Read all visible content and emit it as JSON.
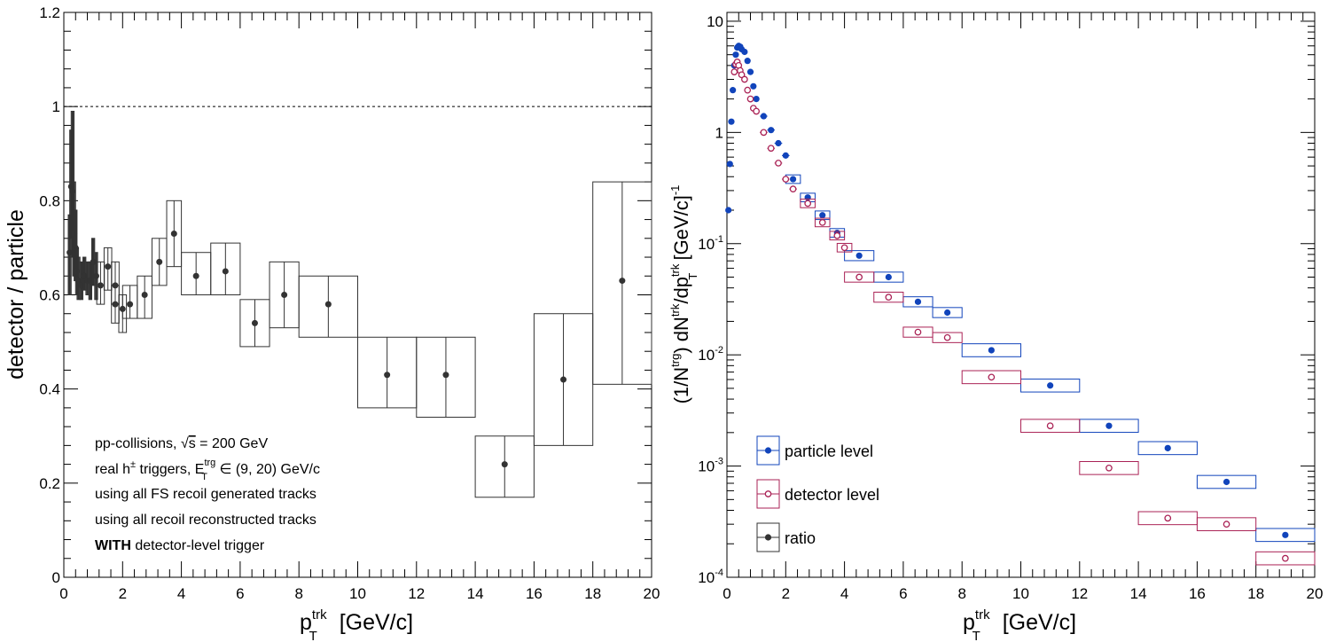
{
  "chart_data": [
    {
      "type": "scatter",
      "title": "",
      "xlabel": {
        "base": "p",
        "sup": "trk",
        "sub": "T",
        "rest": " [GeV/c]"
      },
      "ylabel": "detector / particle",
      "xlim": [
        0,
        20
      ],
      "ylim": [
        0,
        1.2
      ],
      "x_ticks": [
        "0",
        "2",
        "4",
        "6",
        "8",
        "10",
        "12",
        "14",
        "16",
        "18",
        "20"
      ],
      "y_ticks": [
        "0",
        "0.2",
        "0.4",
        "0.6",
        "0.8",
        "1",
        "1.2"
      ],
      "reference_line": 1,
      "annotations": {
        "line1_pre": "pp-collisions, ",
        "line1_sqrt": "s",
        "line1_post": " = 200 GeV",
        "line2_pre": "real h",
        "line2_pm": "±",
        "line2_mid": " triggers, E",
        "line2_sup": "trg",
        "line2_sub": "T",
        "line2_post": " ∈ (9, 20) GeV/c",
        "line3": "using all FS recoil generated tracks",
        "line4": "using all recoil reconstructed tracks",
        "line5_bold": "WITH",
        "line5_rest": " detector-level trigger"
      },
      "series": [
        {
          "name": "ratio",
          "color": "#333333",
          "points": [
            {
              "x": 0.2,
              "y": 0.69,
              "xerr": 0.05,
              "ylo": 0.6,
              "yhi": 0.77
            },
            {
              "x": 0.25,
              "y": 0.83,
              "xerr": 0.05,
              "ylo": 0.72,
              "yhi": 0.95
            },
            {
              "x": 0.3,
              "y": 0.82,
              "xerr": 0.05,
              "ylo": 0.68,
              "yhi": 0.99
            },
            {
              "x": 0.35,
              "y": 0.73,
              "xerr": 0.05,
              "ylo": 0.64,
              "yhi": 0.84
            },
            {
              "x": 0.4,
              "y": 0.7,
              "xerr": 0.05,
              "ylo": 0.63,
              "yhi": 0.78
            },
            {
              "x": 0.45,
              "y": 0.65,
              "xerr": 0.05,
              "ylo": 0.6,
              "yhi": 0.7
            },
            {
              "x": 0.5,
              "y": 0.63,
              "xerr": 0.05,
              "ylo": 0.59,
              "yhi": 0.68
            },
            {
              "x": 0.6,
              "y": 0.62,
              "xerr": 0.05,
              "ylo": 0.59,
              "yhi": 0.67
            },
            {
              "x": 0.7,
              "y": 0.64,
              "xerr": 0.05,
              "ylo": 0.61,
              "yhi": 0.68
            },
            {
              "x": 0.8,
              "y": 0.63,
              "xerr": 0.05,
              "ylo": 0.6,
              "yhi": 0.67
            },
            {
              "x": 0.9,
              "y": 0.63,
              "xerr": 0.05,
              "ylo": 0.59,
              "yhi": 0.67
            },
            {
              "x": 1.0,
              "y": 0.67,
              "xerr": 0.05,
              "ylo": 0.62,
              "yhi": 0.72
            },
            {
              "x": 1.1,
              "y": 0.64,
              "xerr": 0.05,
              "ylo": 0.59,
              "yhi": 0.69
            },
            {
              "x": 1.25,
              "y": 0.62,
              "xerr": 0.13,
              "ylo": 0.58,
              "yhi": 0.67
            },
            {
              "x": 1.5,
              "y": 0.66,
              "xerr": 0.13,
              "ylo": 0.61,
              "yhi": 0.7
            },
            {
              "x": 1.75,
              "y": 0.62,
              "xerr": 0.13,
              "ylo": 0.58,
              "yhi": 0.67
            },
            {
              "x": 1.75,
              "y": 0.58,
              "xerr": 0.13,
              "ylo": 0.54,
              "yhi": 0.62
            },
            {
              "x": 2.0,
              "y": 0.57,
              "xerr": 0.13,
              "ylo": 0.52,
              "yhi": 0.6
            },
            {
              "x": 2.25,
              "y": 0.58,
              "xerr": 0.25,
              "ylo": 0.55,
              "yhi": 0.62
            },
            {
              "x": 2.75,
              "y": 0.6,
              "xerr": 0.25,
              "ylo": 0.55,
              "yhi": 0.64
            },
            {
              "x": 3.25,
              "y": 0.67,
              "xerr": 0.25,
              "ylo": 0.62,
              "yhi": 0.72
            },
            {
              "x": 3.75,
              "y": 0.73,
              "xerr": 0.25,
              "ylo": 0.66,
              "yhi": 0.8
            },
            {
              "x": 4.5,
              "y": 0.64,
              "xerr": 0.5,
              "ylo": 0.6,
              "yhi": 0.69
            },
            {
              "x": 5.5,
              "y": 0.65,
              "xerr": 0.5,
              "ylo": 0.6,
              "yhi": 0.71
            },
            {
              "x": 6.5,
              "y": 0.54,
              "xerr": 0.5,
              "ylo": 0.49,
              "yhi": 0.59
            },
            {
              "x": 7.5,
              "y": 0.6,
              "xerr": 0.5,
              "ylo": 0.53,
              "yhi": 0.67
            },
            {
              "x": 9.0,
              "y": 0.58,
              "xerr": 1.0,
              "ylo": 0.51,
              "yhi": 0.64
            },
            {
              "x": 11.0,
              "y": 0.43,
              "xerr": 1.0,
              "ylo": 0.36,
              "yhi": 0.51
            },
            {
              "x": 13.0,
              "y": 0.43,
              "xerr": 1.0,
              "ylo": 0.34,
              "yhi": 0.51
            },
            {
              "x": 15.0,
              "y": 0.24,
              "xerr": 1.0,
              "ylo": 0.17,
              "yhi": 0.3
            },
            {
              "x": 17.0,
              "y": 0.42,
              "xerr": 1.0,
              "ylo": 0.28,
              "yhi": 0.56
            },
            {
              "x": 19.0,
              "y": 0.63,
              "xerr": 1.0,
              "ylo": 0.41,
              "yhi": 0.84
            }
          ]
        }
      ]
    },
    {
      "type": "scatter",
      "title": "",
      "xlabel": {
        "base": "p",
        "sup": "trk",
        "sub": "T",
        "rest": " [GeV/c]"
      },
      "ylabel": {
        "p1": "(1/N",
        "p1_sup": "trg",
        "p2": ") dN",
        "p2_sup": "trk",
        "p3": "/dp",
        "p3_sup": "trk",
        "p3_sub": "T",
        "p4": " [GeV/c]",
        "p4_sup": "-1"
      },
      "xlim": [
        0,
        20
      ],
      "ylim": [
        0.0001,
        12
      ],
      "log_y": true,
      "x_ticks": [
        "0",
        "2",
        "4",
        "6",
        "8",
        "10",
        "12",
        "14",
        "16",
        "18",
        "20"
      ],
      "y_ticks": [
        {
          "base": "10",
          "exp": "-4",
          "value": 0.0001
        },
        {
          "base": "10",
          "exp": "-3",
          "value": 0.001
        },
        {
          "base": "10",
          "exp": "-2",
          "value": 0.01
        },
        {
          "base": "10",
          "exp": "-1",
          "value": 0.1
        },
        {
          "base": "1",
          "exp": "",
          "value": 1
        },
        {
          "base": "10",
          "exp": "",
          "value": 10
        }
      ],
      "legend_position": "bottom-left",
      "legend": [
        {
          "label": "particle level",
          "color": "#1144bb",
          "marker": "filled-circle"
        },
        {
          "label": "detector level",
          "color": "#aa2255",
          "marker": "open-circle"
        },
        {
          "label": "ratio",
          "color": "#333333",
          "marker": "filled-circle"
        }
      ],
      "series": [
        {
          "name": "particle level",
          "color": "#1144bb",
          "marker": "filled",
          "points": [
            {
              "x": 0.05,
              "y": 0.2,
              "xerr": 0.05
            },
            {
              "x": 0.1,
              "y": 0.52,
              "xerr": 0.05
            },
            {
              "x": 0.15,
              "y": 1.25,
              "xerr": 0.05
            },
            {
              "x": 0.2,
              "y": 2.4,
              "xerr": 0.05
            },
            {
              "x": 0.25,
              "y": 4.0,
              "xerr": 0.05
            },
            {
              "x": 0.3,
              "y": 5.0,
              "xerr": 0.05
            },
            {
              "x": 0.35,
              "y": 5.8,
              "xerr": 0.05
            },
            {
              "x": 0.4,
              "y": 6.0,
              "xerr": 0.05
            },
            {
              "x": 0.45,
              "y": 5.9,
              "xerr": 0.05
            },
            {
              "x": 0.5,
              "y": 5.6,
              "xerr": 0.05
            },
            {
              "x": 0.6,
              "y": 5.3,
              "xerr": 0.05
            },
            {
              "x": 0.7,
              "y": 4.4,
              "xerr": 0.05
            },
            {
              "x": 0.8,
              "y": 3.5,
              "xerr": 0.05
            },
            {
              "x": 0.9,
              "y": 2.6,
              "xerr": 0.05
            },
            {
              "x": 1.0,
              "y": 2.0,
              "xerr": 0.05
            },
            {
              "x": 1.25,
              "y": 1.4,
              "xerr": 0.13
            },
            {
              "x": 1.5,
              "y": 1.05,
              "xerr": 0.13
            },
            {
              "x": 1.75,
              "y": 0.8,
              "xerr": 0.13
            },
            {
              "x": 2.0,
              "y": 0.62,
              "xerr": 0.13
            },
            {
              "x": 2.25,
              "y": 0.38,
              "xerr": 0.25
            },
            {
              "x": 2.75,
              "y": 0.26,
              "xerr": 0.25
            },
            {
              "x": 3.25,
              "y": 0.18,
              "xerr": 0.25
            },
            {
              "x": 3.75,
              "y": 0.125,
              "xerr": 0.25
            },
            {
              "x": 4.5,
              "y": 0.078,
              "xerr": 0.5
            },
            {
              "x": 5.5,
              "y": 0.05,
              "xerr": 0.5
            },
            {
              "x": 6.5,
              "y": 0.03,
              "xerr": 0.5
            },
            {
              "x": 7.5,
              "y": 0.024,
              "xerr": 0.5
            },
            {
              "x": 9.0,
              "y": 0.011,
              "xerr": 1.0
            },
            {
              "x": 11.0,
              "y": 0.0053,
              "xerr": 1.0
            },
            {
              "x": 13.0,
              "y": 0.0023,
              "xerr": 1.0
            },
            {
              "x": 15.0,
              "y": 0.00145,
              "xerr": 1.0
            },
            {
              "x": 17.0,
              "y": 0.00072,
              "xerr": 1.0
            },
            {
              "x": 19.0,
              "y": 0.00024,
              "xerr": 1.0
            }
          ]
        },
        {
          "name": "detector level",
          "color": "#aa2255",
          "marker": "open",
          "points": [
            {
              "x": 0.25,
              "y": 3.5,
              "xerr": 0.05
            },
            {
              "x": 0.3,
              "y": 4.1,
              "xerr": 0.05
            },
            {
              "x": 0.35,
              "y": 4.3,
              "xerr": 0.05
            },
            {
              "x": 0.4,
              "y": 4.0,
              "xerr": 0.05
            },
            {
              "x": 0.45,
              "y": 3.6,
              "xerr": 0.05
            },
            {
              "x": 0.5,
              "y": 3.3,
              "xerr": 0.05
            },
            {
              "x": 0.6,
              "y": 3.0,
              "xerr": 0.05
            },
            {
              "x": 0.7,
              "y": 2.4,
              "xerr": 0.05
            },
            {
              "x": 0.8,
              "y": 2.0,
              "xerr": 0.05
            },
            {
              "x": 0.9,
              "y": 1.65,
              "xerr": 0.05
            },
            {
              "x": 1.0,
              "y": 1.55,
              "xerr": 0.05
            },
            {
              "x": 1.25,
              "y": 1.0,
              "xerr": 0.13
            },
            {
              "x": 1.5,
              "y": 0.72,
              "xerr": 0.13
            },
            {
              "x": 1.75,
              "y": 0.53,
              "xerr": 0.13
            },
            {
              "x": 2.0,
              "y": 0.38,
              "xerr": 0.13
            },
            {
              "x": 2.25,
              "y": 0.31,
              "xerr": 0.13
            },
            {
              "x": 2.75,
              "y": 0.23,
              "xerr": 0.25
            },
            {
              "x": 3.25,
              "y": 0.155,
              "xerr": 0.25
            },
            {
              "x": 3.75,
              "y": 0.118,
              "xerr": 0.25
            },
            {
              "x": 4.0,
              "y": 0.092,
              "xerr": 0.25
            },
            {
              "x": 4.5,
              "y": 0.05,
              "xerr": 0.5
            },
            {
              "x": 5.5,
              "y": 0.033,
              "xerr": 0.5
            },
            {
              "x": 6.5,
              "y": 0.016,
              "xerr": 0.5
            },
            {
              "x": 7.5,
              "y": 0.0143,
              "xerr": 0.5
            },
            {
              "x": 9.0,
              "y": 0.0063,
              "xerr": 1.0
            },
            {
              "x": 11.0,
              "y": 0.0023,
              "xerr": 1.0
            },
            {
              "x": 13.0,
              "y": 0.00096,
              "xerr": 1.0
            },
            {
              "x": 15.0,
              "y": 0.00034,
              "xerr": 1.0
            },
            {
              "x": 17.0,
              "y": 0.0003,
              "xerr": 1.0
            },
            {
              "x": 19.0,
              "y": 0.000148,
              "xerr": 1.0
            }
          ]
        }
      ]
    }
  ]
}
